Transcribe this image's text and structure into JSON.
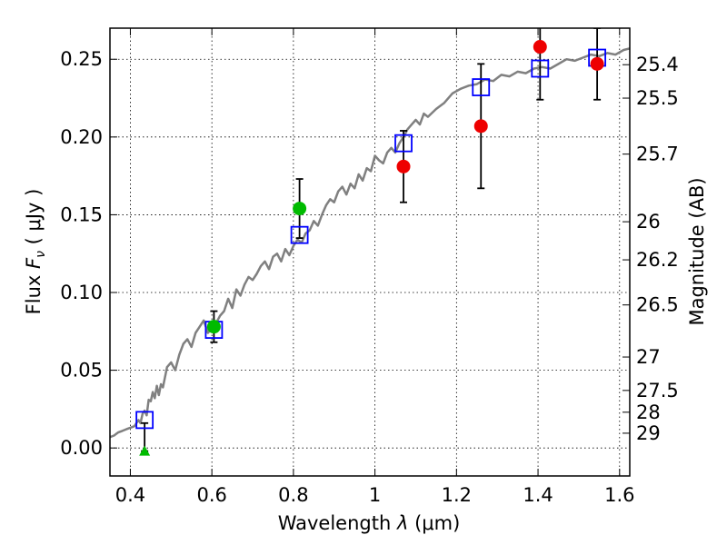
{
  "chart_data": {
    "type": "scatter",
    "xlabel": "Wavelength  λ (μm)",
    "ylabel": "Flux  Fν  ( μJy )",
    "ylabel_parts": {
      "left": "Flux ",
      "symbol": "F",
      "sub": "ν",
      "unit": "  ( μJy )"
    },
    "xlabel_parts": {
      "left": "Wavelength  ",
      "symbol": "λ",
      "unit": " (μm)"
    },
    "y2label": "Magnitude (AB)",
    "xlim": [
      0.35,
      1.625
    ],
    "ylim": [
      -0.018,
      0.27
    ],
    "grid": true,
    "x_ticks": [
      0.4,
      0.6,
      0.8,
      1.0,
      1.2,
      1.4,
      1.6
    ],
    "x_tick_labels": [
      "0.4",
      "0.6",
      "0.8",
      "1",
      "1.2",
      "1.4",
      "1.6"
    ],
    "y_ticks": [
      0.0,
      0.05,
      0.1,
      0.15,
      0.2,
      0.25
    ],
    "y_tick_labels": [
      "0.00",
      "0.05",
      "0.10",
      "0.15",
      "0.20",
      "0.25"
    ],
    "y2_ticks": [
      {
        "flux": 0.2465,
        "label": "25.4"
      },
      {
        "flux": 0.225,
        "label": "25.5"
      },
      {
        "flux": 0.189,
        "label": "25.7"
      },
      {
        "flux": 0.1455,
        "label": "26"
      },
      {
        "flux": 0.121,
        "label": "26.2"
      },
      {
        "flux": 0.092,
        "label": "26.5"
      },
      {
        "flux": 0.0585,
        "label": "27"
      },
      {
        "flux": 0.037,
        "label": "27.5"
      },
      {
        "flux": 0.023,
        "label": "28"
      },
      {
        "flux": 0.0095,
        "label": "29"
      }
    ],
    "series": [
      {
        "name": "model_spectrum",
        "kind": "line",
        "color": "#808080",
        "x": [
          0.35,
          0.36,
          0.37,
          0.38,
          0.39,
          0.4,
          0.41,
          0.42,
          0.425,
          0.43,
          0.435,
          0.44,
          0.445,
          0.45,
          0.455,
          0.46,
          0.465,
          0.47,
          0.475,
          0.48,
          0.49,
          0.5,
          0.51,
          0.52,
          0.53,
          0.54,
          0.55,
          0.56,
          0.57,
          0.58,
          0.59,
          0.6,
          0.61,
          0.62,
          0.63,
          0.64,
          0.65,
          0.66,
          0.67,
          0.68,
          0.69,
          0.7,
          0.71,
          0.72,
          0.73,
          0.74,
          0.75,
          0.76,
          0.77,
          0.78,
          0.79,
          0.8,
          0.81,
          0.82,
          0.83,
          0.84,
          0.85,
          0.86,
          0.87,
          0.88,
          0.89,
          0.9,
          0.91,
          0.92,
          0.93,
          0.94,
          0.95,
          0.96,
          0.97,
          0.98,
          0.99,
          1.0,
          1.01,
          1.02,
          1.03,
          1.04,
          1.05,
          1.06,
          1.07,
          1.08,
          1.09,
          1.1,
          1.11,
          1.12,
          1.13,
          1.15,
          1.17,
          1.19,
          1.21,
          1.23,
          1.25,
          1.27,
          1.29,
          1.31,
          1.33,
          1.35,
          1.37,
          1.39,
          1.41,
          1.43,
          1.45,
          1.47,
          1.49,
          1.51,
          1.53,
          1.55,
          1.57,
          1.59,
          1.61,
          1.625
        ],
        "y": [
          0.007,
          0.008,
          0.01,
          0.011,
          0.012,
          0.013,
          0.014,
          0.018,
          0.016,
          0.022,
          0.024,
          0.021,
          0.031,
          0.03,
          0.036,
          0.032,
          0.04,
          0.034,
          0.041,
          0.039,
          0.052,
          0.055,
          0.05,
          0.06,
          0.067,
          0.07,
          0.065,
          0.074,
          0.078,
          0.082,
          0.074,
          0.077,
          0.08,
          0.085,
          0.088,
          0.096,
          0.09,
          0.102,
          0.098,
          0.105,
          0.11,
          0.108,
          0.112,
          0.117,
          0.12,
          0.115,
          0.123,
          0.125,
          0.12,
          0.128,
          0.124,
          0.13,
          0.134,
          0.132,
          0.138,
          0.14,
          0.146,
          0.143,
          0.15,
          0.156,
          0.16,
          0.158,
          0.165,
          0.168,
          0.163,
          0.17,
          0.167,
          0.176,
          0.172,
          0.18,
          0.178,
          0.188,
          0.185,
          0.183,
          0.19,
          0.193,
          0.19,
          0.196,
          0.2,
          0.205,
          0.208,
          0.211,
          0.208,
          0.215,
          0.213,
          0.218,
          0.222,
          0.228,
          0.231,
          0.233,
          0.234,
          0.237,
          0.236,
          0.24,
          0.239,
          0.242,
          0.241,
          0.244,
          0.245,
          0.244,
          0.247,
          0.25,
          0.249,
          0.251,
          0.253,
          0.252,
          0.254,
          0.253,
          0.256,
          0.257
        ]
      },
      {
        "name": "model_fluxes",
        "kind": "open-square",
        "color": "#0000ff",
        "x": [
          0.435,
          0.605,
          0.815,
          1.07,
          1.26,
          1.405,
          1.545
        ],
        "y": [
          0.018,
          0.076,
          0.137,
          0.196,
          0.232,
          0.244,
          0.251
        ]
      },
      {
        "name": "observed_green",
        "kind": "filled-circle",
        "color": "#00bb00",
        "x": [
          0.605,
          0.815
        ],
        "y": [
          0.078,
          0.154
        ],
        "err": [
          0.01,
          0.019
        ]
      },
      {
        "name": "observed_red",
        "kind": "filled-circle",
        "color": "#ee0000",
        "x": [
          1.07,
          1.26,
          1.405,
          1.545
        ],
        "y": [
          0.181,
          0.207,
          0.258,
          0.247
        ],
        "err": [
          0.023,
          0.04,
          0.034,
          0.023
        ]
      },
      {
        "name": "upper_limit",
        "kind": "triangle",
        "color": "#00bb00",
        "x": [
          0.435
        ],
        "y": [
          -0.002
        ],
        "err_top": [
          0.018
        ]
      }
    ]
  }
}
